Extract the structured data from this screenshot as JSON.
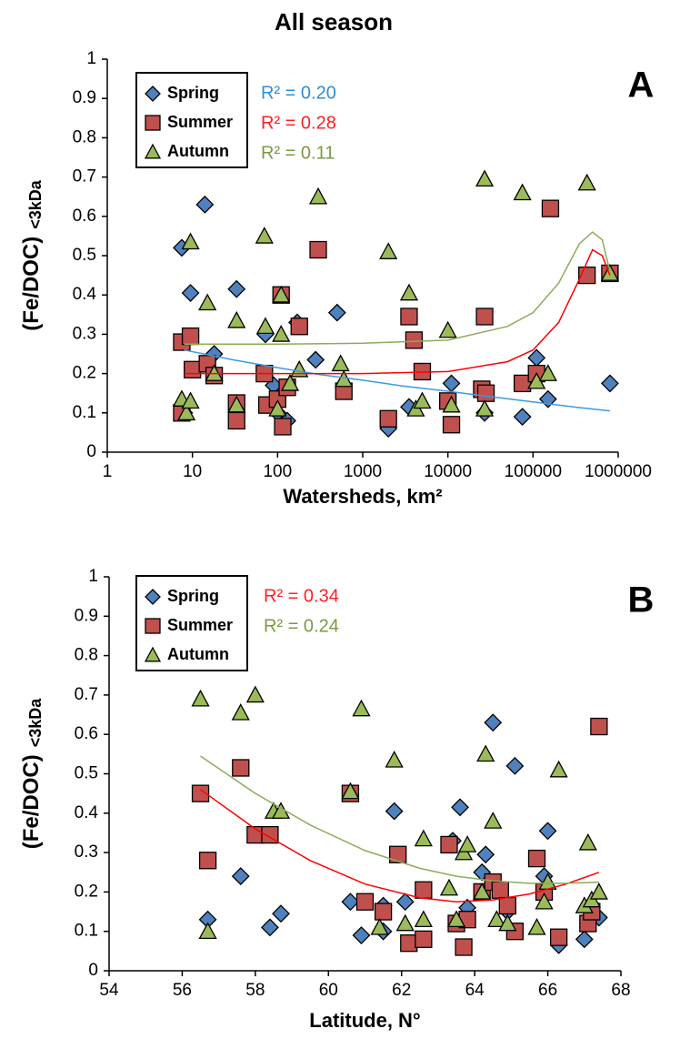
{
  "chart_data": [
    {
      "type": "scatter",
      "title": "All season",
      "panel_label": "A",
      "y_label": "(Fe/DOC)",
      "y_label_sub": "<3kDa",
      "x_label": "Watersheds, km²",
      "log_x": true,
      "xlim": [
        1,
        1000000
      ],
      "ylim": [
        0,
        1
      ],
      "xticks": [
        1,
        10,
        100,
        1000,
        10000,
        100000,
        1000000
      ],
      "yticks": [
        0,
        0.1,
        0.2,
        0.3,
        0.4,
        0.5,
        0.6,
        0.7,
        0.8,
        0.9,
        1
      ],
      "series": [
        {
          "name": "Spring",
          "color": "#4f81bd",
          "marker": "diamond",
          "x": [
            7.5,
            14,
            9.5,
            33,
            18,
            72,
            90,
            130,
            170,
            500,
            280,
            2000,
            3500,
            11000,
            27000,
            75000,
            110000,
            150000,
            800000,
            8,
            100
          ],
          "values": [
            0.52,
            0.63,
            0.405,
            0.415,
            0.25,
            0.3,
            0.17,
            0.08,
            0.33,
            0.355,
            0.235,
            0.06,
            0.115,
            0.175,
            0.1,
            0.09,
            0.24,
            0.135,
            0.175,
            0.1,
            0.1
          ]
        },
        {
          "name": "Summer",
          "color": "#c0504d",
          "marker": "square",
          "x": [
            7.5,
            9.5,
            10,
            15,
            18,
            33,
            33,
            70,
            75,
            100,
            110,
            115,
            130,
            180,
            300,
            600,
            2000,
            3500,
            4000,
            5000,
            10000,
            11000,
            27000,
            25000,
            28000,
            75000,
            110000,
            160000,
            430000,
            800000,
            7.5
          ],
          "values": [
            0.28,
            0.295,
            0.21,
            0.225,
            0.195,
            0.125,
            0.08,
            0.2,
            0.12,
            0.135,
            0.4,
            0.065,
            0.165,
            0.32,
            0.515,
            0.155,
            0.085,
            0.345,
            0.285,
            0.205,
            0.13,
            0.07,
            0.345,
            0.16,
            0.15,
            0.175,
            0.2,
            0.62,
            0.45,
            0.455,
            0.1
          ]
        },
        {
          "name": "Autumn",
          "color": "#9bbb59",
          "marker": "triangle",
          "x": [
            7.5,
            8.5,
            9.5,
            9.5,
            15,
            18,
            33,
            33,
            70,
            72,
            100,
            110,
            110,
            140,
            180,
            300,
            550,
            600,
            2000,
            3500,
            4200,
            5000,
            10000,
            11000,
            27000,
            27000,
            75000,
            110000,
            150000,
            430000,
            800000
          ],
          "values": [
            0.135,
            0.1,
            0.535,
            0.13,
            0.38,
            0.2,
            0.335,
            0.12,
            0.55,
            0.32,
            0.11,
            0.4,
            0.3,
            0.175,
            0.21,
            0.65,
            0.225,
            0.185,
            0.51,
            0.405,
            0.11,
            0.13,
            0.31,
            0.12,
            0.695,
            0.11,
            0.66,
            0.18,
            0.2,
            0.685,
            0.455
          ]
        }
      ],
      "trendlines": [
        {
          "label": "R² = 0.20",
          "color": "#3b9ae1",
          "label_color": "#2e8ed6",
          "x": [
            8,
            30,
            100,
            300,
            1000,
            3000,
            10000,
            30000,
            100000,
            300000,
            800000
          ],
          "values": [
            0.26,
            0.235,
            0.215,
            0.198,
            0.183,
            0.168,
            0.155,
            0.142,
            0.128,
            0.115,
            0.105
          ]
        },
        {
          "label": "R² = 0.28",
          "color": "#ff0000",
          "label_color": "#ff2020",
          "x": [
            8,
            100,
            1000,
            10000,
            50000,
            100000,
            200000,
            350000,
            500000,
            650000,
            800000
          ],
          "values": [
            0.2,
            0.2,
            0.2,
            0.205,
            0.23,
            0.26,
            0.33,
            0.44,
            0.515,
            0.5,
            0.45
          ]
        },
        {
          "label": "R² = 0.11",
          "color": "#8faa5a",
          "label_color": "#7a9a40",
          "x": [
            8,
            100,
            1000,
            10000,
            50000,
            100000,
            200000,
            350000,
            500000,
            650000,
            800000
          ],
          "values": [
            0.275,
            0.275,
            0.277,
            0.285,
            0.32,
            0.355,
            0.43,
            0.53,
            0.56,
            0.54,
            0.46
          ]
        }
      ]
    },
    {
      "type": "scatter",
      "panel_label": "B",
      "y_label": "(Fe/DOC)",
      "y_label_sub": "<3kDa",
      "x_label": "Latitude, N°",
      "log_x": false,
      "xlim": [
        54,
        68
      ],
      "ylim": [
        0,
        1
      ],
      "xticks": [
        54,
        56,
        58,
        60,
        62,
        64,
        66,
        68
      ],
      "yticks": [
        0,
        0.1,
        0.2,
        0.3,
        0.4,
        0.5,
        0.6,
        0.7,
        0.8,
        0.9,
        1
      ],
      "series": [
        {
          "name": "Spring",
          "color": "#4f81bd",
          "marker": "diamond",
          "x": [
            56.7,
            57.6,
            58.4,
            58.7,
            60.6,
            60.9,
            61.5,
            61.5,
            61.8,
            62.1,
            63.4,
            63.6,
            63.8,
            64.2,
            64.3,
            64.5,
            64.9,
            65.1,
            66,
            65.9,
            66.3,
            67,
            67.4
          ],
          "values": [
            0.13,
            0.24,
            0.11,
            0.145,
            0.175,
            0.09,
            0.1,
            0.165,
            0.405,
            0.175,
            0.33,
            0.415,
            0.16,
            0.25,
            0.295,
            0.63,
            0.15,
            0.52,
            0.355,
            0.24,
            0.065,
            0.08,
            0.135
          ]
        },
        {
          "name": "Summer",
          "color": "#c0504d",
          "marker": "square",
          "x": [
            56.5,
            56.7,
            57.6,
            58,
            58.4,
            60.6,
            61,
            61.5,
            61.9,
            62.2,
            62.6,
            62.6,
            63.3,
            63.5,
            63.7,
            63.8,
            64.2,
            64.5,
            64.7,
            64.9,
            65.1,
            65.7,
            65.9,
            66.3,
            67.1,
            67.2,
            67.4
          ],
          "values": [
            0.45,
            0.28,
            0.515,
            0.345,
            0.345,
            0.45,
            0.175,
            0.15,
            0.295,
            0.07,
            0.08,
            0.205,
            0.32,
            0.12,
            0.06,
            0.13,
            0.2,
            0.225,
            0.205,
            0.165,
            0.1,
            0.285,
            0.2,
            0.085,
            0.12,
            0.15,
            0.62
          ]
        },
        {
          "name": "Autumn",
          "color": "#9bbb59",
          "marker": "triangle",
          "x": [
            56.5,
            56.7,
            57.6,
            58,
            58.5,
            58.7,
            60.6,
            60.9,
            61.4,
            61.8,
            62.1,
            62.6,
            62.6,
            63.3,
            63.5,
            63.7,
            63.8,
            64.2,
            64.3,
            64.5,
            64.6,
            64.9,
            65.7,
            65.9,
            66,
            66.3,
            67,
            67.1,
            67.2,
            67.4
          ],
          "values": [
            0.69,
            0.1,
            0.655,
            0.7,
            0.405,
            0.405,
            0.455,
            0.665,
            0.11,
            0.535,
            0.12,
            0.335,
            0.13,
            0.21,
            0.13,
            0.3,
            0.32,
            0.2,
            0.55,
            0.38,
            0.13,
            0.12,
            0.11,
            0.175,
            0.225,
            0.51,
            0.165,
            0.325,
            0.18,
            0.2
          ]
        }
      ],
      "trendlines": [
        {
          "label": "R² = 0.34",
          "color": "#ff0000",
          "label_color": "#ff2020",
          "x": [
            56.5,
            58,
            59.5,
            61,
            62.5,
            63.5,
            64.5,
            65.5,
            66.5,
            67.4
          ],
          "values": [
            0.46,
            0.36,
            0.28,
            0.22,
            0.185,
            0.175,
            0.18,
            0.195,
            0.22,
            0.25
          ]
        },
        {
          "label": "R² = 0.24",
          "color": "#8faa5a",
          "label_color": "#7a9a40",
          "x": [
            56.5,
            58,
            59.5,
            61,
            62.5,
            63.5,
            64.5,
            65.5,
            66.5,
            67.4
          ],
          "values": [
            0.545,
            0.45,
            0.37,
            0.305,
            0.26,
            0.24,
            0.228,
            0.222,
            0.222,
            0.225
          ]
        }
      ]
    }
  ]
}
